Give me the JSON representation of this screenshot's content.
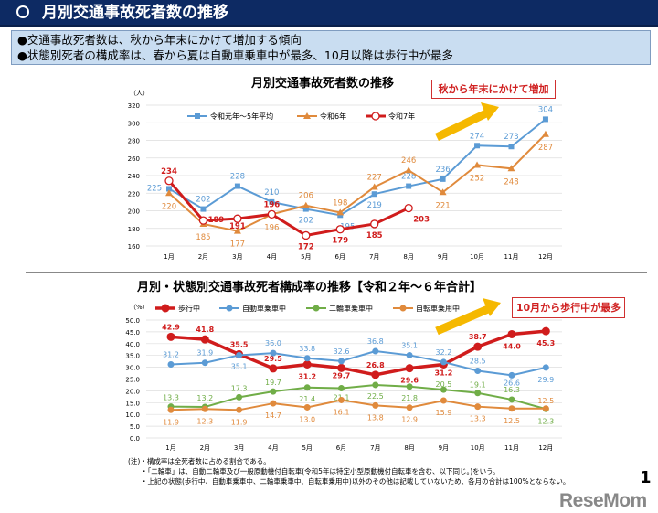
{
  "header": {
    "title": "月別交通事故死者数の推移"
  },
  "summary": [
    "●交通事故死者数は、秋から年末にかけて増加する傾向",
    "●状態別死者の構成率は、春から夏は自動車乗車中が最多、10月以降は歩行中が最多"
  ],
  "chart_data": [
    {
      "type": "line",
      "title": "月別交通事故死者数の推移",
      "ylabel": "（人）",
      "ylim": [
        160,
        320
      ],
      "yticks": [
        160,
        180,
        200,
        220,
        240,
        260,
        280,
        300,
        320
      ],
      "categories": [
        "1月",
        "2月",
        "3月",
        "4月",
        "5月",
        "6月",
        "7月",
        "8月",
        "9月",
        "10月",
        "11月",
        "12月"
      ],
      "callout": "秋から年末にかけて増加",
      "series": [
        {
          "name": "令和元年～5年平均",
          "color": "#5b9bd5",
          "marker": "square",
          "values": [
            225,
            202,
            228,
            210,
            202,
            195,
            219,
            228,
            236,
            274,
            273,
            304
          ]
        },
        {
          "name": "令和6年",
          "color": "#e08a3c",
          "marker": "triangle",
          "values": [
            220,
            185,
            177,
            196,
            206,
            198,
            227,
            246,
            221,
            252,
            248,
            287
          ]
        },
        {
          "name": "令和7年",
          "color": "#d01c1c",
          "marker": "circle-open",
          "values": [
            234,
            189,
            191,
            196,
            172,
            179,
            185,
            203,
            null,
            null,
            null,
            null
          ]
        }
      ]
    },
    {
      "type": "line",
      "title": "月別・状態別交通事故死者構成率の推移【令和２年～６年合計】",
      "ylabel": "（%）",
      "ylim": [
        0,
        50
      ],
      "yticks": [
        0,
        5,
        10,
        15,
        20,
        25,
        30,
        35,
        40,
        45,
        50
      ],
      "categories": [
        "1月",
        "2月",
        "3月",
        "4月",
        "5月",
        "6月",
        "7月",
        "8月",
        "9月",
        "10月",
        "11月",
        "12月"
      ],
      "callout": "10月から歩行中が最多",
      "series": [
        {
          "name": "歩行中",
          "color": "#d01c1c",
          "marker": "circle",
          "values": [
            42.9,
            41.8,
            35.5,
            29.5,
            31.2,
            29.7,
            26.8,
            29.6,
            31.2,
            38.7,
            44.0,
            45.3
          ]
        },
        {
          "name": "自動車乗車中",
          "color": "#5b9bd5",
          "marker": "circle",
          "values": [
            31.2,
            31.9,
            35.1,
            36.0,
            33.8,
            32.6,
            36.8,
            35.1,
            32.2,
            28.5,
            26.6,
            29.9
          ]
        },
        {
          "name": "二輪車乗車中",
          "color": "#70ad47",
          "marker": "circle",
          "values": [
            13.3,
            13.2,
            17.3,
            19.7,
            21.4,
            21.1,
            22.5,
            21.8,
            20.5,
            19.1,
            16.3,
            12.3
          ]
        },
        {
          "name": "自転車乗用中",
          "color": "#e08a3c",
          "marker": "circle",
          "values": [
            11.9,
            12.3,
            11.9,
            14.7,
            13.0,
            16.1,
            13.8,
            12.9,
            15.9,
            13.3,
            12.5,
            12.5
          ]
        }
      ]
    }
  ],
  "notes": [
    "(注)・構成率は全死者数に占める割合である。",
    "・「二輪車」は、自動二輪車及び一般原動機付自転車(令和5年は特定小型原動機付自転車を含む、以下同じ。)をいう。",
    "・上記の状態(歩行中、自動車乗車中、二輪車乗車中、自転車乗用中)以外のその他は記載していないため、各月の合計は100%とならない。"
  ],
  "page_number": "1",
  "logo": "ReseMom"
}
